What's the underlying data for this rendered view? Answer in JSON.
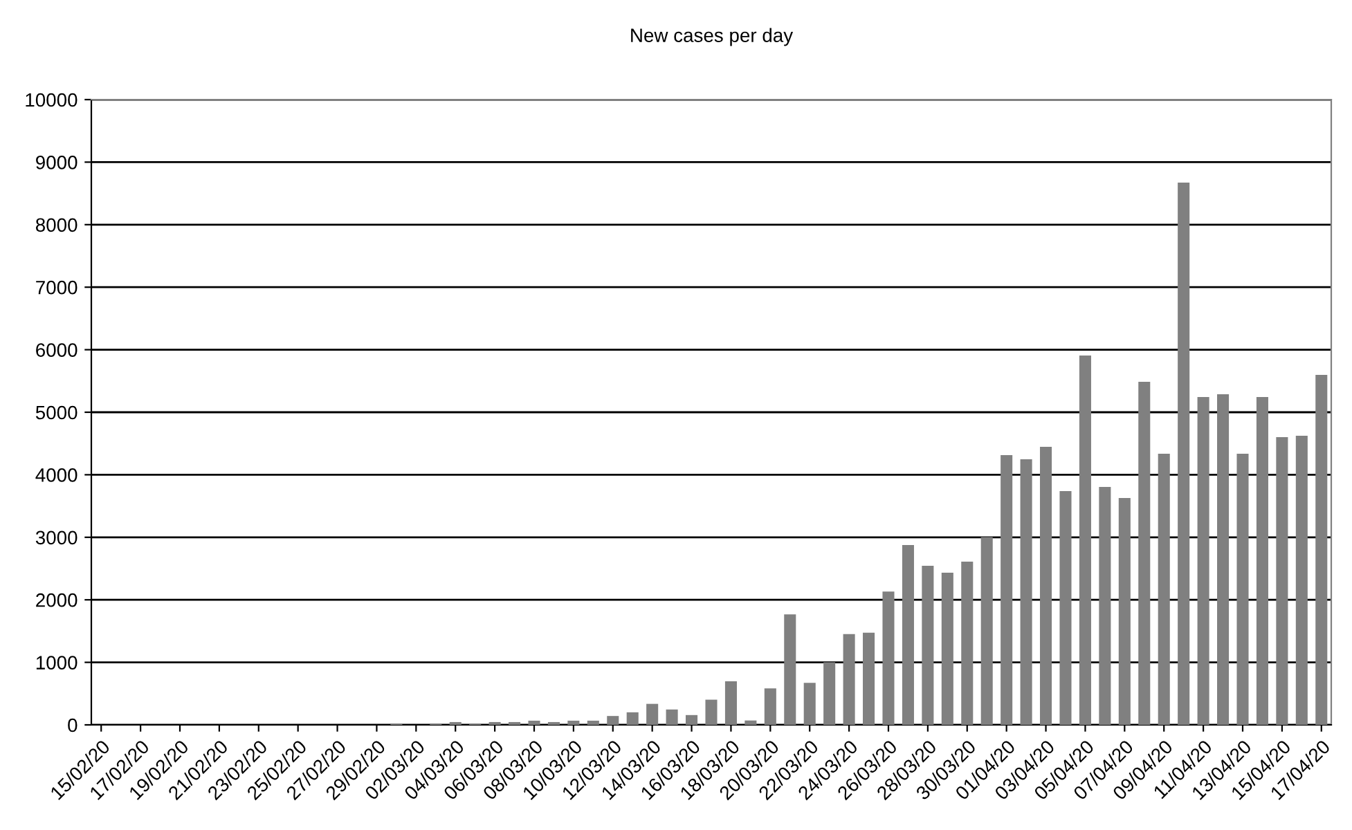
{
  "chart_data": {
    "type": "bar",
    "title": "New cases per day",
    "categories": [
      "15/02/20",
      null,
      "17/02/20",
      null,
      "19/02/20",
      null,
      "21/02/20",
      null,
      "23/02/20",
      null,
      "25/02/20",
      null,
      "27/02/20",
      null,
      "29/02/20",
      null,
      "02/03/20",
      null,
      "04/03/20",
      null,
      "06/03/20",
      null,
      "08/03/20",
      null,
      "10/03/20",
      null,
      "12/03/20",
      null,
      "14/03/20",
      null,
      "16/03/20",
      null,
      "18/03/20",
      null,
      "20/03/20",
      null,
      "22/03/20",
      null,
      "24/03/20",
      null,
      "26/03/20",
      null,
      "28/03/20",
      null,
      "30/03/20",
      null,
      "01/04/20",
      null,
      "03/04/20",
      null,
      "05/04/20",
      null,
      "07/04/20",
      null,
      "09/04/20",
      null,
      "11/04/20",
      null,
      "13/04/20",
      null,
      "15/04/20",
      null,
      "17/04/20"
    ],
    "values": [
      0,
      0,
      0,
      0,
      0,
      0,
      0,
      0,
      0,
      0,
      0,
      0,
      0,
      0,
      0,
      20,
      0,
      20,
      45,
      22,
      45,
      45,
      67,
      45,
      67,
      67,
      142,
      201,
      336,
      246,
      157,
      403,
      697,
      70,
      584,
      1766,
      673,
      1000,
      1452,
      1474,
      2132,
      2876,
      2544,
      2434,
      2611,
      3002,
      4314,
      4248,
      4447,
      3739,
      5907,
      3805,
      3628,
      5487,
      4336,
      8673,
      5243,
      5288,
      4336,
      5243,
      4602,
      4624,
      5597
    ],
    "color": "#808080",
    "ylim": [
      0,
      10000
    ],
    "yticks": [
      0,
      1000,
      2000,
      3000,
      4000,
      5000,
      6000,
      7000,
      8000,
      9000,
      10000
    ],
    "grid": "y",
    "legend": false
  }
}
